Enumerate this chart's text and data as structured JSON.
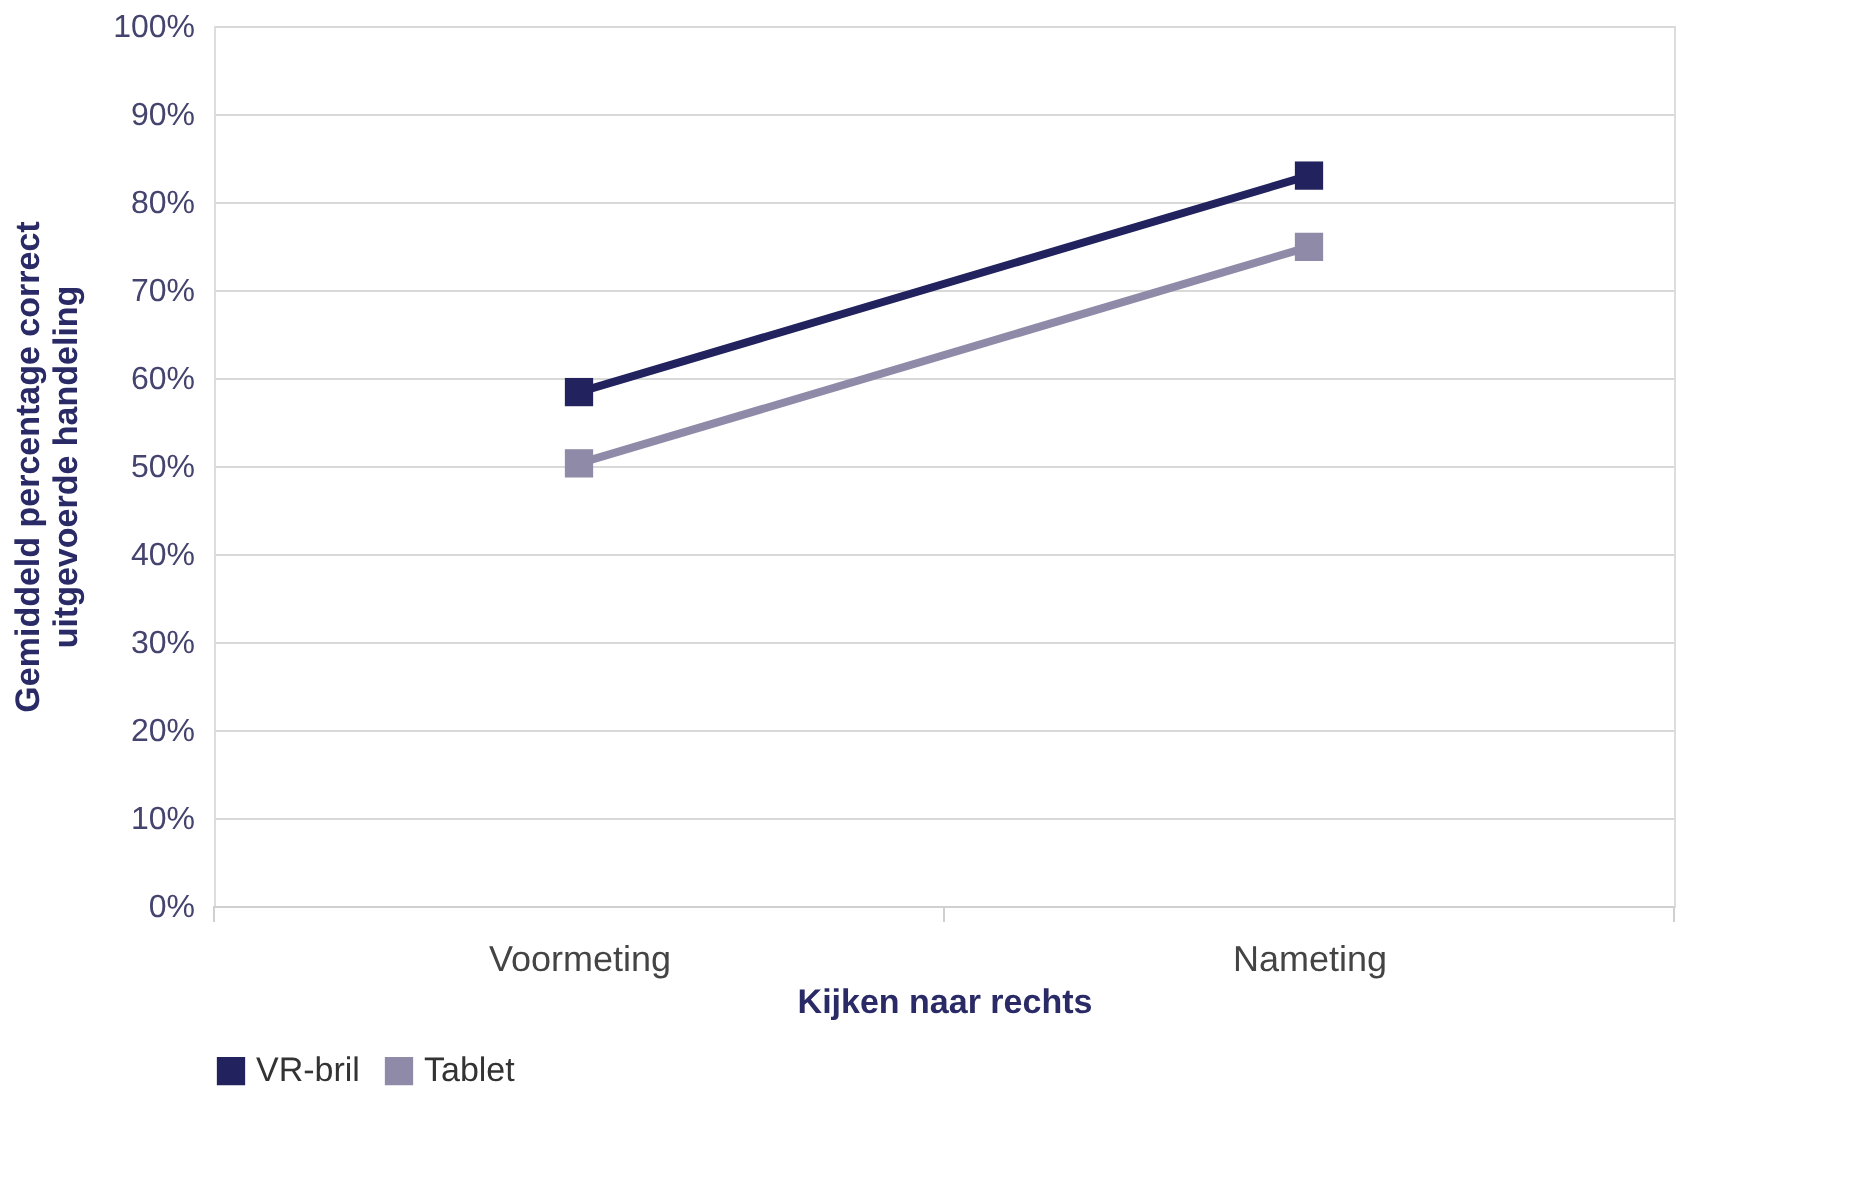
{
  "chart_data": {
    "type": "line",
    "xlabel": "Kijken naar rechts",
    "ylabel": "Gemiddeld percentage correct uitgevoerde handeling",
    "categories": [
      "Voormeting",
      "Nameting"
    ],
    "series": [
      {
        "name": "VR-bril",
        "color": "#22225e",
        "values": [
          58.4,
          83.0
        ]
      },
      {
        "name": "Tablet",
        "color": "#8e8aa8",
        "values": [
          50.3,
          74.9
        ]
      }
    ],
    "ylim": [
      0,
      100
    ],
    "yticks": [
      {
        "value": 0,
        "label": "0%"
      },
      {
        "value": 10,
        "label": "10%"
      },
      {
        "value": 20,
        "label": "20%"
      },
      {
        "value": 30,
        "label": "30%"
      },
      {
        "value": 40,
        "label": "40%"
      },
      {
        "value": 50,
        "label": "50%"
      },
      {
        "value": 60,
        "label": "60%"
      },
      {
        "value": 70,
        "label": "70%"
      },
      {
        "value": 80,
        "label": "80%"
      },
      {
        "value": 90,
        "label": "90%"
      },
      {
        "value": 100,
        "label": "100%"
      }
    ],
    "grid": "y",
    "legend": "bottom",
    "marker": "square",
    "line_style": "solid"
  }
}
